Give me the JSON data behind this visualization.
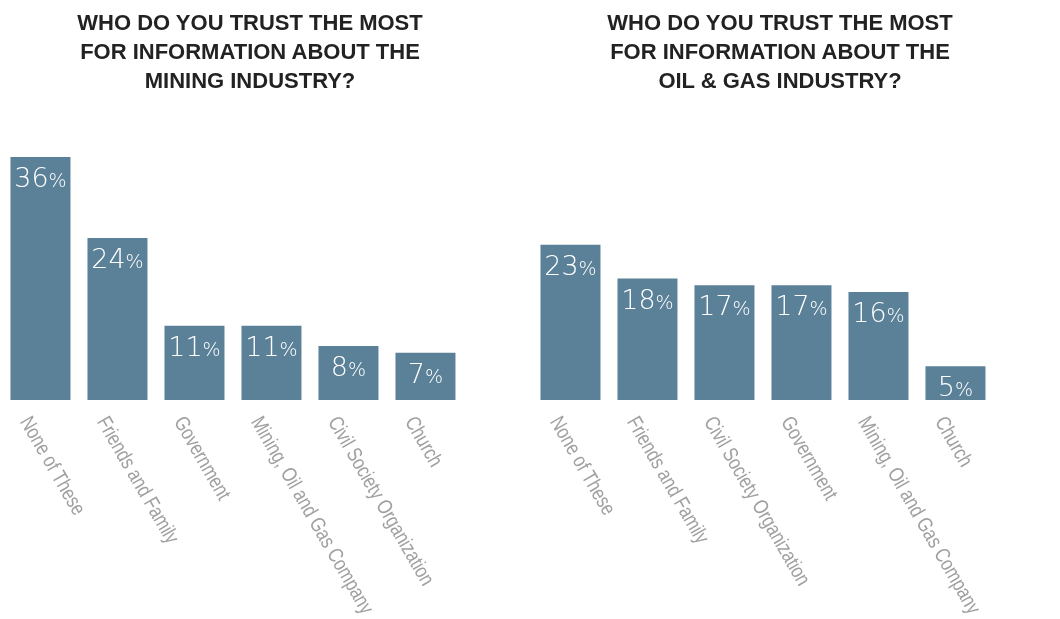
{
  "chart_data": [
    {
      "type": "bar",
      "title": "WHO DO YOU TRUST THE MOST FOR INFORMATION ABOUT THE MINING INDUSTRY?",
      "categories": [
        "None of These",
        "Friends and Family",
        "Government",
        "Mining, Oil and Gas Company",
        "Civil Society Organization",
        "Church"
      ],
      "values": [
        36,
        24,
        11,
        11,
        8,
        7
      ],
      "value_labels": [
        "36%",
        "24%",
        "11%",
        "11%",
        "8%",
        "7%"
      ],
      "color": "#5b8199",
      "legend": false,
      "grid": false
    },
    {
      "type": "bar",
      "title": "WHO DO YOU TRUST THE MOST FOR INFORMATION ABOUT THE OIL & GAS INDUSTRY?",
      "categories": [
        "None of These",
        "Friends and Family",
        "Civil Society Organization",
        "Government",
        "Mining, Oil and Gas Company",
        "Church"
      ],
      "values": [
        23,
        18,
        17,
        17,
        16,
        5
      ],
      "value_labels": [
        "23%",
        "18%",
        "17%",
        "17%",
        "16%",
        "5%"
      ],
      "color": "#5b8199",
      "legend": false,
      "grid": false
    }
  ]
}
